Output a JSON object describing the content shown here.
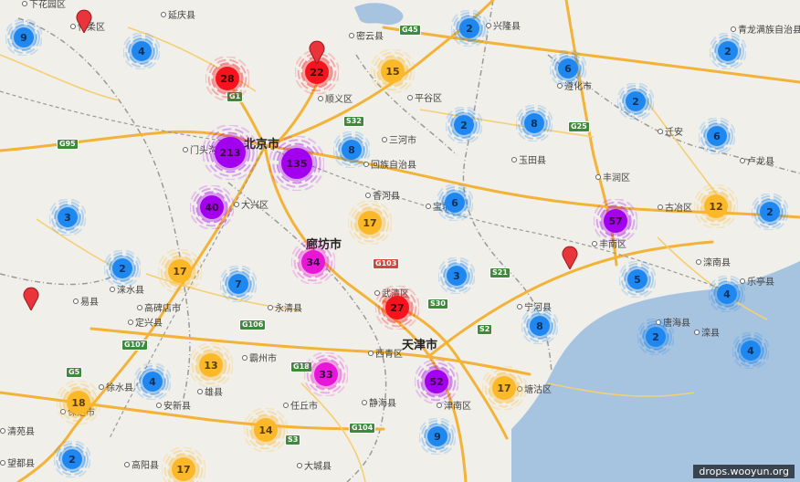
{
  "colors": {
    "blue": "#1e88f0",
    "orange": "#fbb829",
    "red": "#f5141e",
    "purple": "#a400f0",
    "magenta": "#e817d8",
    "water": "#a6c3e0",
    "road": "#f3b238",
    "pin": "#e8343a"
  },
  "clusters": [
    {
      "count": "9",
      "color": "blue"
    },
    {
      "count": "4",
      "color": "blue"
    },
    {
      "count": "28",
      "color": "red"
    },
    {
      "count": "22",
      "color": "red"
    },
    {
      "count": "15",
      "color": "orange"
    },
    {
      "count": "2",
      "color": "blue"
    },
    {
      "count": "6",
      "color": "blue"
    },
    {
      "count": "2",
      "color": "blue"
    },
    {
      "count": "2",
      "color": "blue"
    },
    {
      "count": "2",
      "color": "blue"
    },
    {
      "count": "8",
      "color": "blue"
    },
    {
      "count": "6",
      "color": "blue"
    },
    {
      "count": "213",
      "color": "purple"
    },
    {
      "count": "135",
      "color": "purple"
    },
    {
      "count": "8",
      "color": "blue"
    },
    {
      "count": "40",
      "color": "purple"
    },
    {
      "count": "3",
      "color": "blue"
    },
    {
      "count": "17",
      "color": "orange"
    },
    {
      "count": "6",
      "color": "blue"
    },
    {
      "count": "57",
      "color": "purple"
    },
    {
      "count": "12",
      "color": "orange"
    },
    {
      "count": "2",
      "color": "blue"
    },
    {
      "count": "34",
      "color": "magenta"
    },
    {
      "count": "2",
      "color": "blue"
    },
    {
      "count": "17",
      "color": "orange"
    },
    {
      "count": "7",
      "color": "blue"
    },
    {
      "count": "3",
      "color": "blue"
    },
    {
      "count": "5",
      "color": "blue"
    },
    {
      "count": "4",
      "color": "blue"
    },
    {
      "count": "27",
      "color": "red"
    },
    {
      "count": "8",
      "color": "blue"
    },
    {
      "count": "2",
      "color": "blue"
    },
    {
      "count": "4",
      "color": "blue"
    },
    {
      "count": "13",
      "color": "orange"
    },
    {
      "count": "33",
      "color": "magenta"
    },
    {
      "count": "52",
      "color": "purple"
    },
    {
      "count": "17",
      "color": "orange"
    },
    {
      "count": "4",
      "color": "blue"
    },
    {
      "count": "18",
      "color": "orange"
    },
    {
      "count": "14",
      "color": "orange"
    },
    {
      "count": "9",
      "color": "blue"
    },
    {
      "count": "2",
      "color": "blue"
    },
    {
      "count": "17",
      "color": "orange"
    }
  ],
  "labels": [
    "下花园区",
    "延庆县",
    "怀柔区",
    "密云县",
    "兴隆县",
    "青龙满族自治县",
    "顺义区",
    "平谷区",
    "遵化市",
    "北京市",
    "门头沟",
    "三河市",
    "回族自治县",
    "玉田县",
    "丰润区",
    "卢龙县",
    "大兴区",
    "香河县",
    "宝坻区",
    "古冶区",
    "廊坊市",
    "丰南区",
    "滦南县",
    "乐亭县",
    "涞水县",
    "高碑店市",
    "易县",
    "定兴县",
    "永清县",
    "武清区",
    "宁河县",
    "唐海县",
    "霸州市",
    "天津市",
    "西青区",
    "徐水县",
    "雄县",
    "安新县",
    "保定市",
    "静海县",
    "津南区",
    "塘沽区",
    "大城县",
    "清苑县",
    "高阳县",
    "望都县",
    "任丘市",
    "迁安",
    "滦县"
  ],
  "label_classes": {
    "city": [
      "北京市",
      "天津市",
      "廊坊市"
    ]
  },
  "road_shields": [
    "G45",
    "G95",
    "S32",
    "G25",
    "G103",
    "S30",
    "S21",
    "S2",
    "G106",
    "G107",
    "G5",
    "G18",
    "G104",
    "S3",
    "G1"
  ],
  "watermark": "drops.wooyun.org"
}
